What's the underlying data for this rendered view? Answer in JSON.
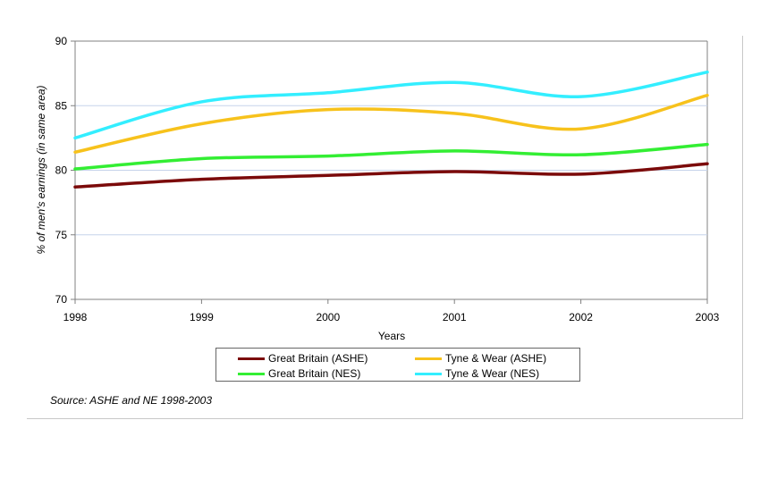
{
  "chart_data": {
    "type": "line",
    "title": "",
    "xlabel": "Years",
    "ylabel": "% of men's earnings (in same area)",
    "x": [
      "1998",
      "1999",
      "2000",
      "2001",
      "2002",
      "2003"
    ],
    "ylim": [
      70,
      90
    ],
    "yticks": [
      "70",
      "75",
      "80",
      "85",
      "90"
    ],
    "grid": true,
    "legend_position": "bottom",
    "series": [
      {
        "name": "Great Britain (ASHE)",
        "color": "#7b0a0a",
        "values": [
          78.7,
          79.3,
          79.6,
          79.9,
          79.7,
          80.5
        ]
      },
      {
        "name": "Tyne & Wear (ASHE)",
        "color": "#f7c21c",
        "values": [
          81.4,
          83.6,
          84.7,
          84.4,
          83.2,
          85.8
        ]
      },
      {
        "name": "Great Britain (NES)",
        "color": "#33ee33",
        "values": [
          80.1,
          80.9,
          81.1,
          81.5,
          81.2,
          82.0
        ]
      },
      {
        "name": "Tyne & Wear (NES)",
        "color": "#33eeff",
        "values": [
          82.5,
          85.3,
          86.0,
          86.8,
          85.7,
          87.6
        ]
      }
    ]
  },
  "source_note": "Source: ASHE and NE 1998-2003"
}
